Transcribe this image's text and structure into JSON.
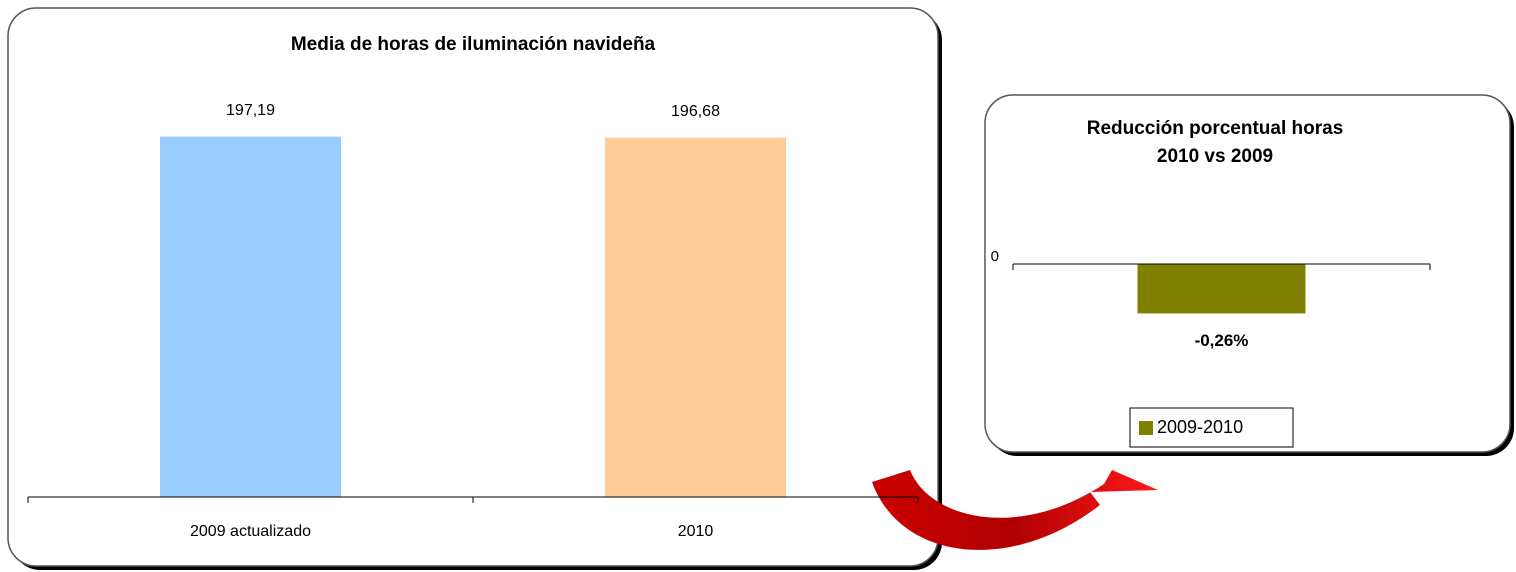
{
  "chart_data": [
    {
      "type": "bar",
      "title": "Media de horas de iluminación navideña",
      "categories": [
        "2009 actualizado",
        "2010"
      ],
      "values": [
        197.19,
        196.68
      ],
      "value_labels": [
        "197,19",
        "196,68"
      ],
      "colors": [
        "#99ccff",
        "#ffcc99"
      ],
      "ylim": [
        0,
        220
      ]
    },
    {
      "type": "bar",
      "title": [
        "Reducción porcentual  horas",
        "2010 vs 2009"
      ],
      "categories": [
        null
      ],
      "series": [
        {
          "name": "2009-2010",
          "color": "#808000",
          "values": [
            -0.26
          ],
          "value_labels": [
            "-0,26%"
          ]
        }
      ],
      "ylim": [
        -0.6,
        0
      ],
      "yticks": [
        0
      ],
      "legend": "bottom"
    }
  ]
}
